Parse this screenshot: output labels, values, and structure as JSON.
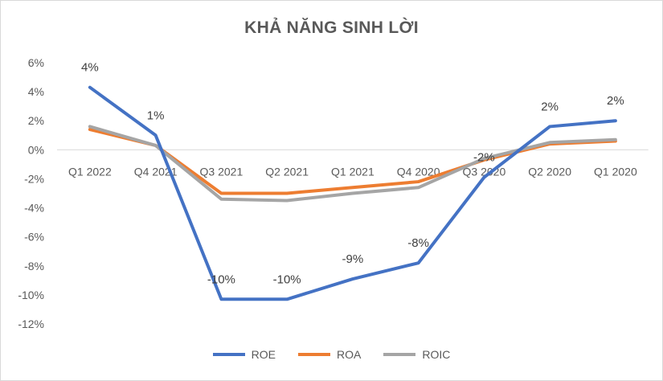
{
  "chart_data": {
    "type": "line",
    "title": "KHẢ NĂNG SINH LỜI",
    "categories": [
      "Q1 2022",
      "Q4 2021",
      "Q3 2021",
      "Q2 2021",
      "Q1 2021",
      "Q4 2020",
      "Q3 2020",
      "Q2 2020",
      "Q1 2020"
    ],
    "yticks": [
      "6%",
      "4%",
      "2%",
      "0%",
      "-2%",
      "-4%",
      "-6%",
      "-8%",
      "-10%",
      "-12%"
    ],
    "ylim": [
      -12,
      6
    ],
    "grid": false,
    "legend_position": "bottom",
    "series": [
      {
        "name": "ROE",
        "color": "#4472C4",
        "values": [
          4.3,
          1.0,
          -10.3,
          -10.3,
          -8.9,
          -7.8,
          -1.9,
          1.6,
          2.0
        ],
        "labels": [
          "4%",
          "1%",
          "-10%",
          "-10%",
          "-9%",
          "-8%",
          "-2%",
          "2%",
          "2%"
        ]
      },
      {
        "name": "ROA",
        "color": "#ED7D31",
        "values": [
          1.4,
          0.3,
          -3.0,
          -3.0,
          -2.6,
          -2.2,
          -0.7,
          0.4,
          0.6
        ]
      },
      {
        "name": "ROIC",
        "color": "#A5A5A5",
        "values": [
          1.6,
          0.3,
          -3.4,
          -3.5,
          -3.0,
          -2.6,
          -0.6,
          0.5,
          0.7
        ]
      }
    ]
  }
}
